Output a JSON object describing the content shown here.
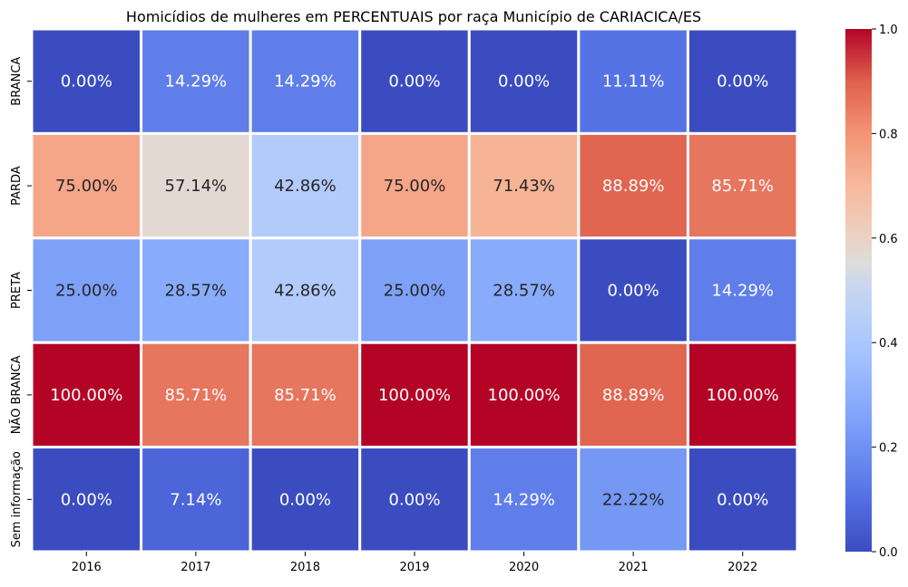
{
  "chart_data": {
    "type": "heatmap",
    "title": "Homicídios de mulheres em PERCENTUAIS por raça Município de CARIACICA/ES",
    "xlabel": "",
    "ylabel": "",
    "x_categories": [
      "2016",
      "2017",
      "2018",
      "2019",
      "2020",
      "2021",
      "2022"
    ],
    "y_categories": [
      "BRANCA",
      "PARDA",
      "PRETA",
      "NÃO BRANCA",
      "Sem informação"
    ],
    "values": [
      [
        0.0,
        0.1429,
        0.1429,
        0.0,
        0.0,
        0.1111,
        0.0
      ],
      [
        0.75,
        0.5714,
        0.4286,
        0.75,
        0.7143,
        0.8889,
        0.8571
      ],
      [
        0.25,
        0.2857,
        0.4286,
        0.25,
        0.2857,
        0.0,
        0.1429
      ],
      [
        1.0,
        0.8571,
        0.8571,
        1.0,
        1.0,
        0.8889,
        1.0
      ],
      [
        0.0,
        0.0714,
        0.0,
        0.0,
        0.1429,
        0.2222,
        0.0
      ]
    ],
    "annotations": [
      [
        "0.00%",
        "14.29%",
        "14.29%",
        "0.00%",
        "0.00%",
        "11.11%",
        "0.00%"
      ],
      [
        "75.00%",
        "57.14%",
        "42.86%",
        "75.00%",
        "71.43%",
        "88.89%",
        "85.71%"
      ],
      [
        "25.00%",
        "28.57%",
        "42.86%",
        "25.00%",
        "28.57%",
        "0.00%",
        "14.29%"
      ],
      [
        "100.00%",
        "85.71%",
        "85.71%",
        "100.00%",
        "100.00%",
        "88.89%",
        "100.00%"
      ],
      [
        "0.00%",
        "7.14%",
        "0.00%",
        "0.00%",
        "14.29%",
        "22.22%",
        "0.00%"
      ]
    ],
    "colormap": "coolwarm",
    "vmin": 0.0,
    "vmax": 1.0,
    "colorbar_ticks": [
      "0.0",
      "0.2",
      "0.4",
      "0.6",
      "0.8",
      "1.0"
    ],
    "colorbar_tick_values": [
      0.0,
      0.2,
      0.4,
      0.6,
      0.8,
      1.0
    ],
    "cell_border_color": "#ffffff"
  }
}
